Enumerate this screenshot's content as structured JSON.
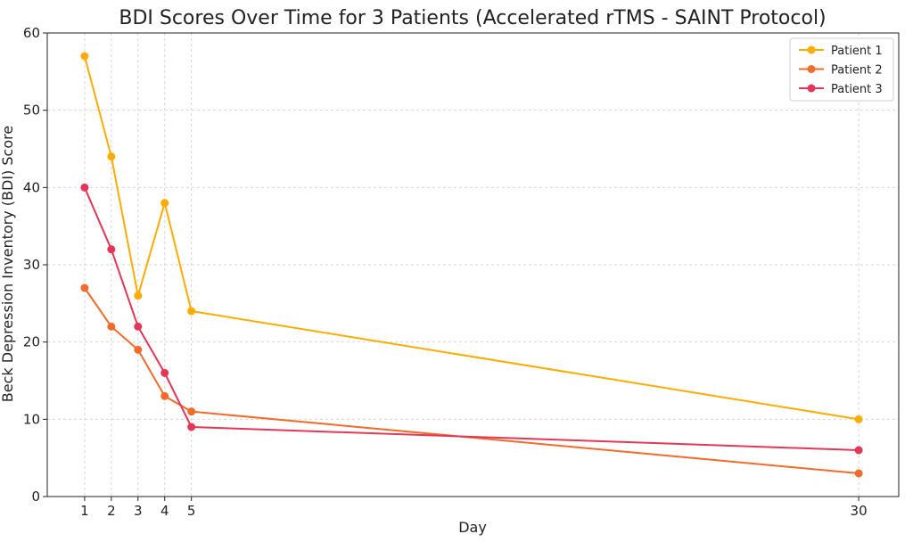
{
  "chart_data": {
    "type": "line",
    "title": "BDI Scores Over Time for 3 Patients (Accelerated rTMS - SAINT Protocol)",
    "xlabel": "Day",
    "ylabel": "Beck Depression Inventory (BDI) Score",
    "x": [
      1,
      2,
      3,
      4,
      5,
      30
    ],
    "xticks": [
      1,
      2,
      3,
      4,
      5,
      30
    ],
    "xlim": [
      -0.4,
      31.5
    ],
    "yticks": [
      0,
      10,
      20,
      30,
      40,
      50,
      60
    ],
    "ylim": [
      0,
      60
    ],
    "grid": true,
    "legend_position": "top-right",
    "series": [
      {
        "name": "Patient 1",
        "color": "#ffab00",
        "values": [
          57,
          44,
          26,
          38,
          24,
          10
        ]
      },
      {
        "name": "Patient 2",
        "color": "#f26b2b",
        "values": [
          27,
          22,
          19,
          13,
          11,
          3
        ]
      },
      {
        "name": "Patient 3",
        "color": "#e43657",
        "values": [
          40,
          32,
          22,
          16,
          9,
          6
        ]
      }
    ]
  }
}
